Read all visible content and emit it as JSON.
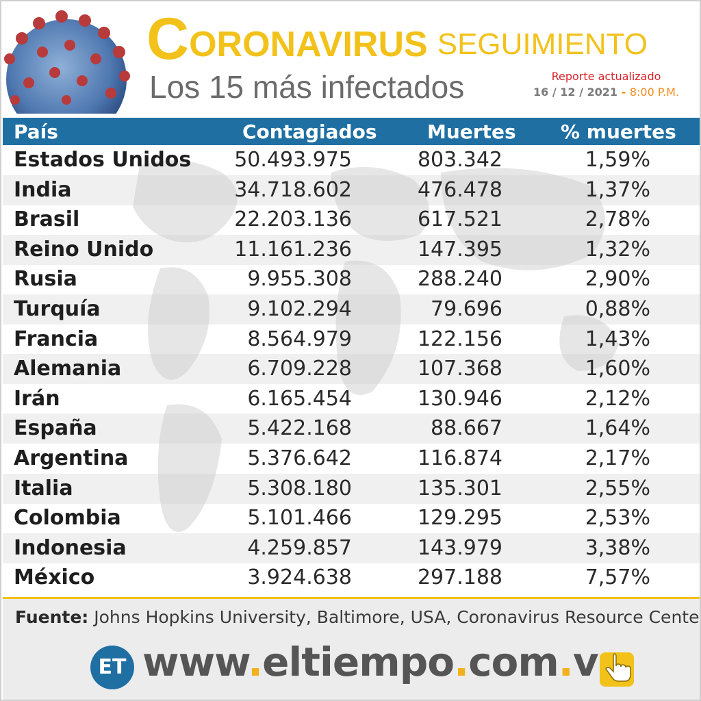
{
  "header": {
    "title_initial": "C",
    "title_rest": "ORONAVIRUS",
    "title_suffix": "SEGUIMIENTO",
    "subtitle": "Los 15 más infectados",
    "report_label": "Reporte actualizado",
    "report_date": "16 / 12 / 2021",
    "report_sep": "-",
    "report_time": "8:00 P.M."
  },
  "table": {
    "columns": [
      "País",
      "Contagiados",
      "Muertes",
      "% muertes"
    ],
    "rows": [
      {
        "pais": "Estados Unidos",
        "contagiados": "50.493.975",
        "muertes": "803.342",
        "pct": "1,59%"
      },
      {
        "pais": "India",
        "contagiados": "34.718.602",
        "muertes": "476.478",
        "pct": "1,37%"
      },
      {
        "pais": "Brasil",
        "contagiados": "22.203.136",
        "muertes": "617.521",
        "pct": "2,78%"
      },
      {
        "pais": "Reino Unido",
        "contagiados": "11.161.236",
        "muertes": "147.395",
        "pct": "1,32%"
      },
      {
        "pais": "Rusia",
        "contagiados": "9.955.308",
        "muertes": "288.240",
        "pct": "2,90%"
      },
      {
        "pais": "Turquía",
        "contagiados": "9.102.294",
        "muertes": "79.696",
        "pct": "0,88%"
      },
      {
        "pais": "Francia",
        "contagiados": "8.564.979",
        "muertes": "122.156",
        "pct": "1,43%"
      },
      {
        "pais": "Alemania",
        "contagiados": "6.709.228",
        "muertes": "107.368",
        "pct": "1,60%"
      },
      {
        "pais": "Irán",
        "contagiados": "6.165.454",
        "muertes": "130.946",
        "pct": "2,12%"
      },
      {
        "pais": "España",
        "contagiados": "5.422.168",
        "muertes": "88.667",
        "pct": "1,64%"
      },
      {
        "pais": "Argentina",
        "contagiados": "5.376.642",
        "muertes": "116.874",
        "pct": "2,17%"
      },
      {
        "pais": "Italia",
        "contagiados": "5.308.180",
        "muertes": "135.301",
        "pct": "2,55%"
      },
      {
        "pais": "Colombia",
        "contagiados": "5.101.466",
        "muertes": "129.295",
        "pct": "2,53%"
      },
      {
        "pais": "Indonesia",
        "contagiados": "4.259.857",
        "muertes": "143.979",
        "pct": "3,38%"
      },
      {
        "pais": "México",
        "contagiados": "3.924.638",
        "muertes": "297.188",
        "pct": "7,57%"
      }
    ]
  },
  "footer": {
    "source_label": "Fuente:",
    "source_text": "Johns Hopkins University, Baltimore, USA, Coronavirus Resource Center",
    "logo_text": "ET",
    "url_parts": [
      "www",
      ".",
      "eltiempo",
      ".",
      "com",
      ".",
      "ve"
    ],
    "hand_icon": "pointing-hand-icon"
  },
  "colors": {
    "accent_yellow": "#f2c21b",
    "header_blue": "#1f6fa3",
    "report_red": "#d8232a",
    "time_orange": "#f28c1b"
  }
}
